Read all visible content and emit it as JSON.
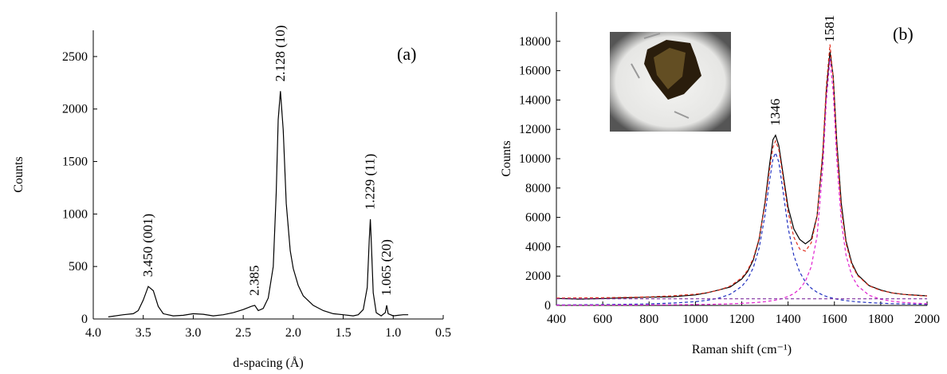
{
  "chart_data": [
    {
      "type": "line",
      "panel_label": "(a)",
      "xlabel": "d-spacing (Å)",
      "ylabel": "Counts",
      "xlim": [
        4.0,
        0.5
      ],
      "xticks": [
        {
          "value": 4.0,
          "label": "4.0"
        },
        3.5,
        {
          "value": 3.0,
          "label": "3.0"
        },
        2.5,
        {
          "value": 2.0,
          "label": "2.0"
        },
        1.5,
        {
          "value": 1.0,
          "label": "1.0"
        },
        0.5
      ],
      "ylim": [
        0,
        2750
      ],
      "yticks": [
        0,
        500,
        1000,
        1500,
        2000,
        2500
      ],
      "x": [
        3.85,
        3.7,
        3.6,
        3.55,
        3.5,
        3.45,
        3.4,
        3.35,
        3.3,
        3.2,
        3.1,
        3.0,
        2.9,
        2.8,
        2.7,
        2.6,
        2.5,
        2.42,
        2.385,
        2.35,
        2.3,
        2.25,
        2.2,
        2.17,
        2.15,
        2.128,
        2.1,
        2.07,
        2.03,
        2.0,
        1.95,
        1.9,
        1.8,
        1.7,
        1.6,
        1.5,
        1.4,
        1.35,
        1.3,
        1.26,
        1.24,
        1.229,
        1.22,
        1.2,
        1.17,
        1.12,
        1.08,
        1.065,
        1.05,
        1.0,
        0.95,
        0.9,
        0.85
      ],
      "series": [
        {
          "color": "#000000",
          "dash": false,
          "values": [
            20,
            40,
            50,
            80,
            180,
            310,
            270,
            120,
            50,
            30,
            35,
            50,
            45,
            30,
            40,
            60,
            90,
            120,
            130,
            80,
            100,
            200,
            500,
            1200,
            1900,
            2170,
            1800,
            1100,
            650,
            480,
            320,
            220,
            130,
            80,
            50,
            40,
            30,
            40,
            90,
            300,
            750,
            950,
            750,
            250,
            60,
            30,
            60,
            130,
            50,
            30,
            35,
            40,
            40
          ]
        }
      ],
      "annotations": [
        "3.450 (001)",
        "2.385",
        "2.128 (10)",
        "1.229 (11)",
        "1.065 (20)"
      ]
    },
    {
      "type": "line",
      "panel_label": "(b)",
      "xlabel": "Raman shift (cm⁻¹)",
      "ylabel": "Counts",
      "xlim": [
        400,
        2000
      ],
      "xticks": [
        400,
        600,
        800,
        1000,
        1200,
        1400,
        1600,
        1800,
        2000
      ],
      "ylim": [
        0,
        20000
      ],
      "yticks": [
        0,
        2000,
        4000,
        6000,
        8000,
        10000,
        12000,
        14000,
        16000,
        18000
      ],
      "x": [
        400,
        500,
        600,
        700,
        800,
        900,
        1000,
        1050,
        1100,
        1150,
        1200,
        1225,
        1250,
        1275,
        1300,
        1320,
        1335,
        1346,
        1360,
        1375,
        1400,
        1425,
        1450,
        1475,
        1500,
        1525,
        1550,
        1565,
        1581,
        1595,
        1610,
        1630,
        1650,
        1675,
        1700,
        1750,
        1800,
        1850,
        1900,
        1950,
        2000
      ],
      "series": [
        {
          "color": "#000000",
          "dash": false,
          "values": [
            480,
            430,
            470,
            520,
            560,
            590,
            720,
            860,
            1050,
            1250,
            1800,
            2300,
            3100,
            4500,
            7000,
            9600,
            11300,
            11600,
            10900,
            9300,
            6700,
            5200,
            4500,
            4200,
            4500,
            6100,
            10300,
            14600,
            17300,
            15600,
            11200,
            6900,
            4400,
            2900,
            2100,
            1350,
            1050,
            850,
            750,
            700,
            650
          ]
        },
        {
          "color": "#e03020",
          "dash": true,
          "values": [
            500,
            511,
            527,
            551,
            588,
            650,
            767,
            870,
            1034,
            1319,
            1883,
            2392,
            3204,
            4567,
            6827,
            9244,
            10783,
            11214,
            10626,
            9060,
            6362,
            4653,
            3841,
            3700,
            4267,
            6066,
            10569,
            14961,
            17789,
            15417,
            10841,
            6502,
            4216,
            2779,
            2033,
            1330,
            1018,
            852,
            752,
            686,
            639
          ]
        },
        {
          "color": "#2030c0",
          "dash": true,
          "values": [
            35,
            44,
            56,
            75,
            104,
            156,
            256,
            347,
            495,
            759,
            1292,
            1781,
            2568,
            3900,
            6121,
            8497,
            10000,
            10400,
            9765,
            8138,
            5306,
            3399,
            2271,
            1598,
            1176,
            897,
            707,
            615,
            539,
            484,
            432,
            376,
            330,
            283,
            245,
            189,
            150,
            122,
            102,
            86,
            73
          ]
        },
        {
          "color": "#e020d0",
          "dash": true,
          "values": [
            15,
            18,
            21,
            26,
            34,
            44,
            61,
            73,
            89,
            110,
            141,
            161,
            186,
            217,
            256,
            297,
            333,
            364,
            411,
            472,
            606,
            804,
            1120,
            1652,
            2641,
            4719,
            9412,
            13896,
            16800,
            14483,
            9959,
            5676,
            3436,
            2046,
            1338,
            691,
            418,
            280,
            200,
            150,
            116
          ]
        },
        {
          "color": "#8030a0",
          "dash": true,
          "values": [
            450,
            450,
            450,
            450,
            450,
            450,
            450,
            450,
            450,
            450,
            450,
            450,
            450,
            450,
            450,
            450,
            450,
            450,
            450,
            450,
            450,
            450,
            450,
            450,
            450,
            450,
            450,
            450,
            450,
            450,
            450,
            450,
            450,
            450,
            450,
            450,
            450,
            450,
            450,
            450,
            450
          ]
        }
      ],
      "annotations": [
        1346,
        1581
      ]
    }
  ]
}
